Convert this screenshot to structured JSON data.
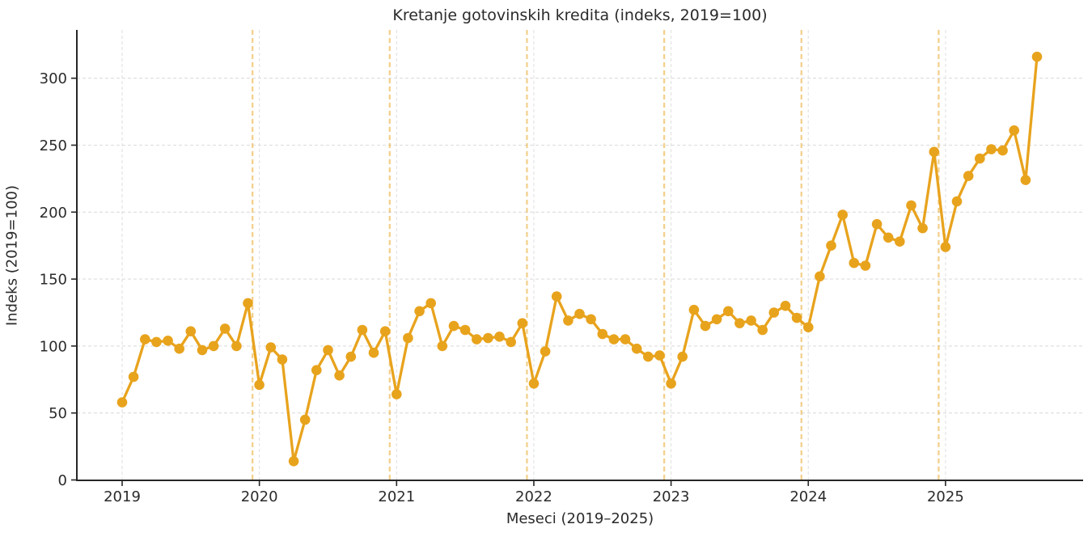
{
  "colors": {
    "accent": "#E8A31D",
    "divider": "#E8A31D",
    "grid": "#DCDCDC",
    "axis": "#262626",
    "text": "#2B2B2B",
    "background": "#FFFFFF"
  },
  "chart_data": {
    "type": "line",
    "title": "Kretanje gotovinskih kredita (indeks, 2019=100)",
    "xlabel": "Meseci (2019–2025)",
    "ylabel": "Indeks (2019=100)",
    "x_tick_labels": [
      "2019",
      "2020",
      "2021",
      "2022",
      "2023",
      "2024",
      "2025"
    ],
    "y_ticks": [
      0,
      50,
      100,
      150,
      200,
      250,
      300
    ],
    "ylim": [
      0,
      335
    ],
    "grid": true,
    "legend_position": "none",
    "line_color": "#E8A31D",
    "marker": "circle",
    "months": [
      "2019-01",
      "2019-02",
      "2019-03",
      "2019-04",
      "2019-05",
      "2019-06",
      "2019-07",
      "2019-08",
      "2019-09",
      "2019-10",
      "2019-11",
      "2019-12",
      "2020-01",
      "2020-02",
      "2020-03",
      "2020-04",
      "2020-05",
      "2020-06",
      "2020-07",
      "2020-08",
      "2020-09",
      "2020-10",
      "2020-11",
      "2020-12",
      "2021-01",
      "2021-02",
      "2021-03",
      "2021-04",
      "2021-05",
      "2021-06",
      "2021-07",
      "2021-08",
      "2021-09",
      "2021-10",
      "2021-11",
      "2021-12",
      "2022-01",
      "2022-02",
      "2022-03",
      "2022-04",
      "2022-05",
      "2022-06",
      "2022-07",
      "2022-08",
      "2022-09",
      "2022-10",
      "2022-11",
      "2022-12",
      "2023-01",
      "2023-02",
      "2023-03",
      "2023-04",
      "2023-05",
      "2023-06",
      "2023-07",
      "2023-08",
      "2023-09",
      "2023-10",
      "2023-11",
      "2023-12",
      "2024-01",
      "2024-02",
      "2024-03",
      "2024-04",
      "2024-05",
      "2024-06",
      "2024-07",
      "2024-08",
      "2024-09",
      "2024-10",
      "2024-11",
      "2024-12",
      "2025-01",
      "2025-02",
      "2025-03",
      "2025-04",
      "2025-05",
      "2025-06",
      "2025-07",
      "2025-08",
      "2025-09"
    ],
    "values": [
      58,
      77,
      105,
      103,
      104,
      98,
      111,
      97,
      100,
      113,
      100,
      132,
      71,
      99,
      90,
      14,
      45,
      82,
      97,
      78,
      92,
      112,
      95,
      111,
      64,
      106,
      126,
      132,
      100,
      115,
      112,
      105,
      106,
      107,
      103,
      117,
      72,
      96,
      137,
      119,
      124,
      120,
      109,
      105,
      105,
      98,
      92,
      93,
      72,
      92,
      127,
      115,
      120,
      126,
      117,
      119,
      112,
      125,
      130,
      121,
      114,
      152,
      175,
      198,
      162,
      160,
      191,
      181,
      178,
      205,
      188,
      245,
      174,
      208,
      227,
      240,
      247,
      246,
      261,
      224,
      316
    ],
    "year_divider_lines": {
      "at": [
        "2020-01",
        "2021-01",
        "2022-01",
        "2023-01",
        "2024-01",
        "2025-01"
      ],
      "style": "dashed",
      "color": "#E8A31D",
      "opacity": 0.5
    }
  }
}
